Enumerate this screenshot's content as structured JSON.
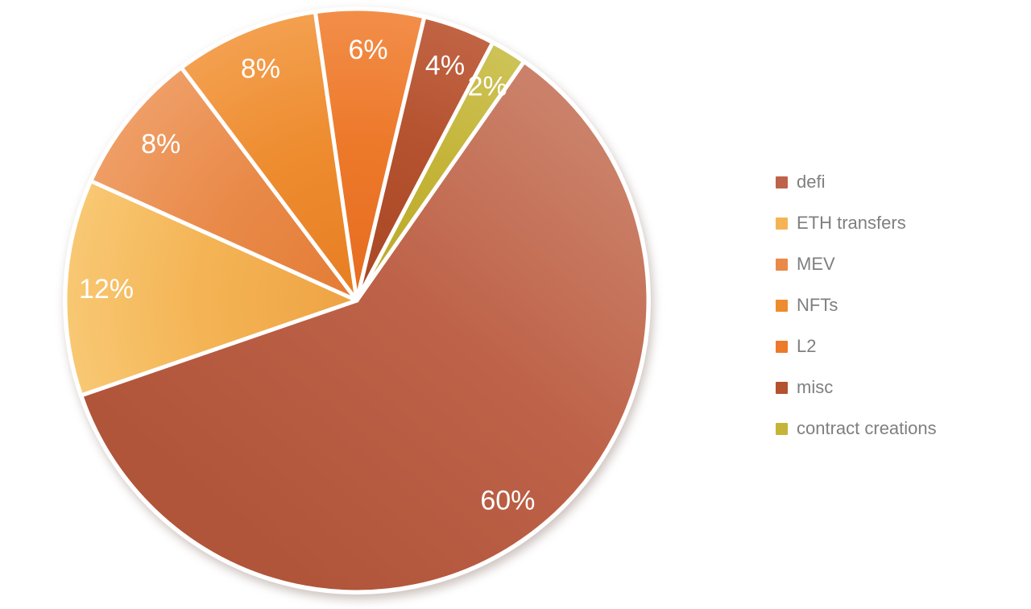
{
  "chart_data": {
    "type": "pie",
    "title": "",
    "data_labels": "percent",
    "label_color": "#FFFFFF",
    "start_angle_deg": 35,
    "direction": "clockwise",
    "legend_position": "right",
    "legend_text_color": "#7F7F7F",
    "background_color": "#FFFFFF",
    "slice_border_color": "#FFFFFF",
    "categories": [
      "defi",
      "ETH transfers",
      "MEV",
      "NFTs",
      "L2",
      "misc",
      "contract creations"
    ],
    "values": [
      60,
      12,
      8,
      8,
      6,
      4,
      2
    ],
    "slices": [
      {
        "label": "defi",
        "value": 60,
        "pct_label": "60%",
        "color": "#BE6349",
        "color_inner": "#B0543A",
        "color_outer": "#CB8169",
        "gradient": "linear"
      },
      {
        "label": "ETH transfers",
        "value": 12,
        "pct_label": "12%",
        "color": "#F4B455",
        "color_inner": "#EEA344",
        "color_outer": "#F8C873",
        "gradient": "radial"
      },
      {
        "label": "MEV",
        "value": 8,
        "pct_label": "8%",
        "color": "#E98A49",
        "color_inner": "#E37C35",
        "color_outer": "#EF9E66",
        "gradient": "radial"
      },
      {
        "label": "NFTs",
        "value": 8,
        "pct_label": "8%",
        "color": "#EE8C30",
        "color_inner": "#E77E22",
        "color_outer": "#F3A04F",
        "gradient": "radial"
      },
      {
        "label": "L2",
        "value": 6,
        "pct_label": "6%",
        "color": "#ED792B",
        "color_inner": "#E66C20",
        "color_outer": "#F28E49",
        "gradient": "radial"
      },
      {
        "label": "misc",
        "value": 4,
        "pct_label": "4%",
        "color": "#B4512E",
        "color_inner": "#A84724",
        "color_outer": "#C16444",
        "gradient": "radial"
      },
      {
        "label": "contract creations",
        "value": 2,
        "pct_label": "2%",
        "color": "#C4B438",
        "color_inner": "#B9A827",
        "color_outer": "#CDC357",
        "gradient": "radial"
      }
    ]
  }
}
